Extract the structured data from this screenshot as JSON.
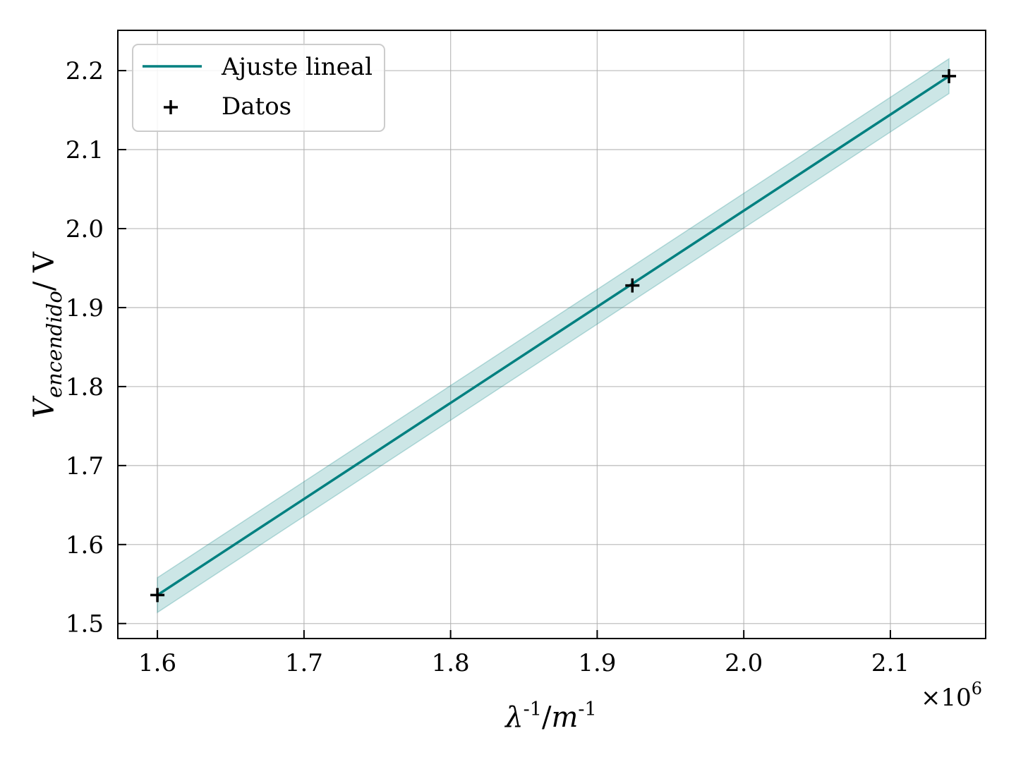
{
  "chart_data": {
    "type": "line",
    "x_tick_labels": [
      "1.6",
      "1.7",
      "1.8",
      "1.9",
      "2.0",
      "2.1"
    ],
    "y_tick_labels": [
      "1.5",
      "1.6",
      "1.7",
      "1.8",
      "1.9",
      "2.0",
      "2.1",
      "2.2"
    ],
    "xlim": [
      1573000,
      2165000
    ],
    "ylim": [
      1.481,
      2.251
    ],
    "x_scale_label": {
      "base": "×10",
      "exp": "6"
    },
    "xlabel": {
      "main": "λ",
      "sup1": "-1",
      "sep": "/",
      "unit": "m",
      "sup2": "-1"
    },
    "ylabel": {
      "main": "V",
      "sub": "encendido",
      "rest": "/ V"
    },
    "grid": true,
    "legend_position": "top-left",
    "legend": [
      {
        "label": "Ajuste lineal",
        "kind": "line"
      },
      {
        "label": "Datos",
        "kind": "marker"
      }
    ],
    "series": [
      {
        "name": "Ajuste lineal",
        "kind": "fit",
        "x": [
          1600000,
          2140000
        ],
        "y": [
          1.536,
          2.193
        ],
        "band_half_width": 0.022,
        "color": "#008080",
        "band_color": "#008080"
      },
      {
        "name": "Datos",
        "kind": "scatter",
        "marker": "plus",
        "color": "#000000",
        "x": [
          1600000,
          1924000,
          2140000
        ],
        "y": [
          1.536,
          1.928,
          2.193
        ]
      }
    ]
  }
}
